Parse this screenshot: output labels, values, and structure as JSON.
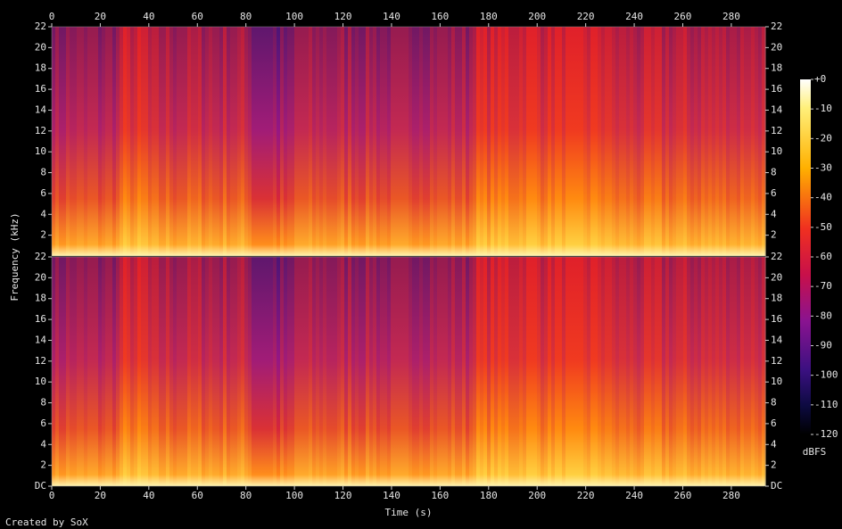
{
  "chart_data": {
    "type": "spectrogram",
    "xlabel": "Time (s)",
    "ylabel": "Frequency (kHz)",
    "xlim": [
      0,
      294
    ],
    "xticks": [
      0,
      20,
      40,
      60,
      80,
      100,
      120,
      140,
      160,
      180,
      200,
      220,
      240,
      260,
      280
    ],
    "ylim": [
      0,
      22
    ],
    "panels": [
      {
        "yticks": [
          2,
          4,
          6,
          8,
          10,
          12,
          14,
          16,
          18,
          20,
          22
        ]
      },
      {
        "yticks": [
          {
            "value": 0,
            "label": "DC"
          },
          2,
          4,
          6,
          8,
          10,
          12,
          14,
          16,
          18,
          20,
          22
        ]
      }
    ],
    "colorbar": {
      "label": "dBFS",
      "lim": [
        -120,
        0
      ],
      "ticks": [
        {
          "value": 0,
          "label": "+0"
        },
        -10,
        -20,
        -30,
        -40,
        -50,
        -60,
        -70,
        -80,
        -90,
        -100,
        -110,
        -120
      ]
    }
  },
  "credit": "Created by SoX"
}
